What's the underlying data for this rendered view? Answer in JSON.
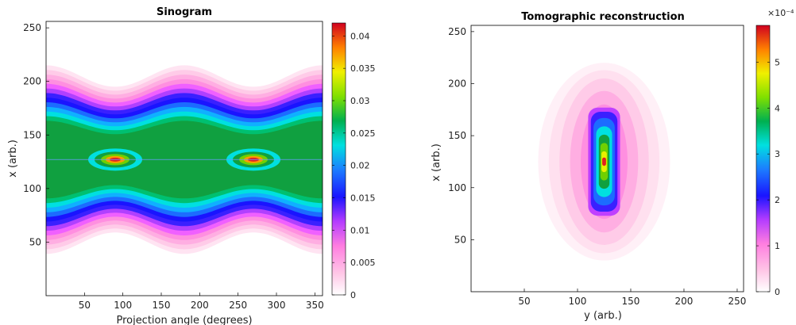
{
  "chart_data": [
    {
      "type": "heatmap",
      "title": "Sinogram",
      "xlabel": "Projection angle (degrees)",
      "ylabel": "x (arb.)",
      "xlim": [
        0,
        360
      ],
      "ylim": [
        0,
        256
      ],
      "xticks": [
        50,
        100,
        150,
        200,
        250,
        300,
        350
      ],
      "yticks": [
        50,
        100,
        150,
        200,
        250
      ],
      "colormap": "pink-blue-green-yellow-red (contour)",
      "colorbar": {
        "min": 0,
        "max": 0.042,
        "ticks": [
          0,
          0.005,
          0.01,
          0.015,
          0.02,
          0.025,
          0.03,
          0.035,
          0.04
        ]
      },
      "features": {
        "center_x": 127,
        "hotspots": [
          {
            "angle": 90,
            "x": 127,
            "value": 0.042
          },
          {
            "angle": 270,
            "x": 127,
            "value": 0.042
          }
        ],
        "outer_band_x_range": [
          48,
          204
        ]
      }
    },
    {
      "type": "heatmap",
      "title": "Tomographic reconstruction",
      "xlabel": "y (arb.)",
      "ylabel": "x (arb.)",
      "xlim": [
        0,
        256
      ],
      "ylim": [
        0,
        256
      ],
      "xticks": [
        50,
        100,
        150,
        200,
        250
      ],
      "yticks": [
        50,
        100,
        150,
        200,
        250
      ],
      "colormap": "pink-blue-green-yellow-red (contour)",
      "colorbar": {
        "min": 0,
        "max": 5.8,
        "ticks": [
          0,
          1,
          2,
          3,
          4,
          5
        ],
        "exponent_label": "×10⁻⁴"
      },
      "features": {
        "center": [
          125,
          125
        ],
        "peak_value": 5.8,
        "elongated_axis": "x"
      }
    }
  ]
}
